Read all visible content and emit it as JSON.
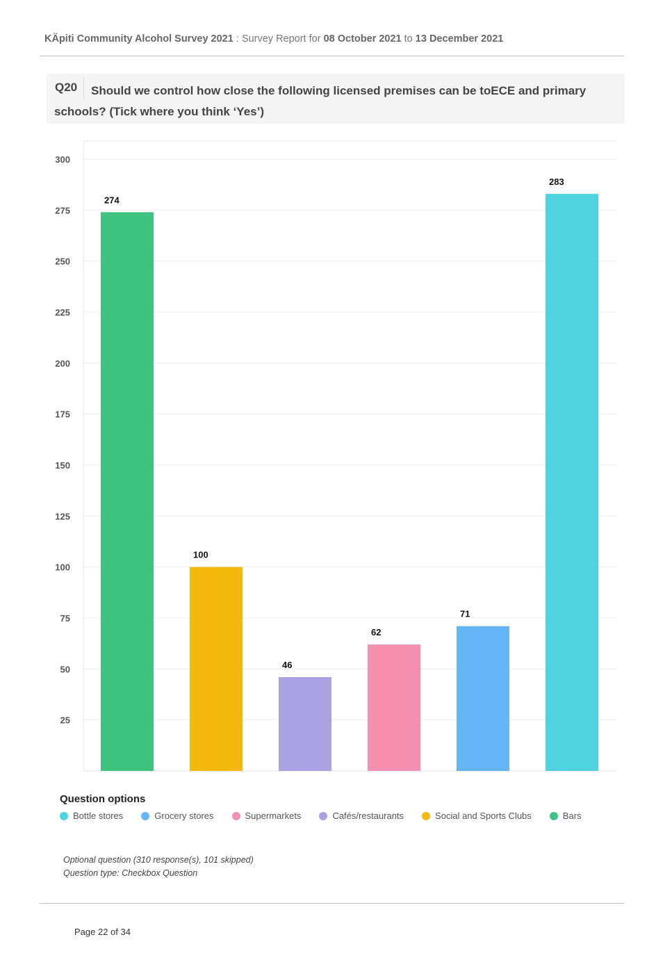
{
  "header": {
    "title": "KÄpiti Community Alcohol Survey 2021",
    "sep": " : ",
    "report_label": "Survey Report for",
    "date_from": "08 October 2021",
    "to": "to",
    "date_to": "13 December 2021"
  },
  "question": {
    "number": "Q20",
    "text": "Should we control how close the following licensed premises can be toECE and primary schools? (Tick where you think ‘Yes’)"
  },
  "chart_data": {
    "type": "bar",
    "categories": [
      "Bars",
      "Social and Sports Clubs",
      "Cafés/restaurants",
      "Supermarkets",
      "Grocery stores",
      "Bottle stores"
    ],
    "values": [
      274,
      100,
      46,
      62,
      71,
      283
    ],
    "colors": [
      "#3ec47f",
      "#f4b90e",
      "#aba2e4",
      "#f58fb0",
      "#65b5f6",
      "#4fd3e0"
    ],
    "yticks": [
      25,
      50,
      75,
      100,
      125,
      150,
      175,
      200,
      225,
      250,
      275,
      300
    ],
    "ylim": [
      0,
      300
    ],
    "grid": true,
    "show_x_tick_labels": false
  },
  "legend": {
    "title": "Question options",
    "items": [
      {
        "label": "Bottle stores",
        "color": "#4fd3e0"
      },
      {
        "label": "Grocery stores",
        "color": "#65b5f6"
      },
      {
        "label": "Supermarkets",
        "color": "#f58fb0"
      },
      {
        "label": "Cafés/restaurants",
        "color": "#aba2e4"
      },
      {
        "label": "Social and Sports Clubs",
        "color": "#f4b90e"
      },
      {
        "label": "Bars",
        "color": "#3ec47f"
      }
    ]
  },
  "notes": {
    "optional": "Optional question (310 response(s), 101 skipped)",
    "type": "Question type: Checkbox Question"
  },
  "footer": {
    "page": "Page 22 of 34"
  }
}
